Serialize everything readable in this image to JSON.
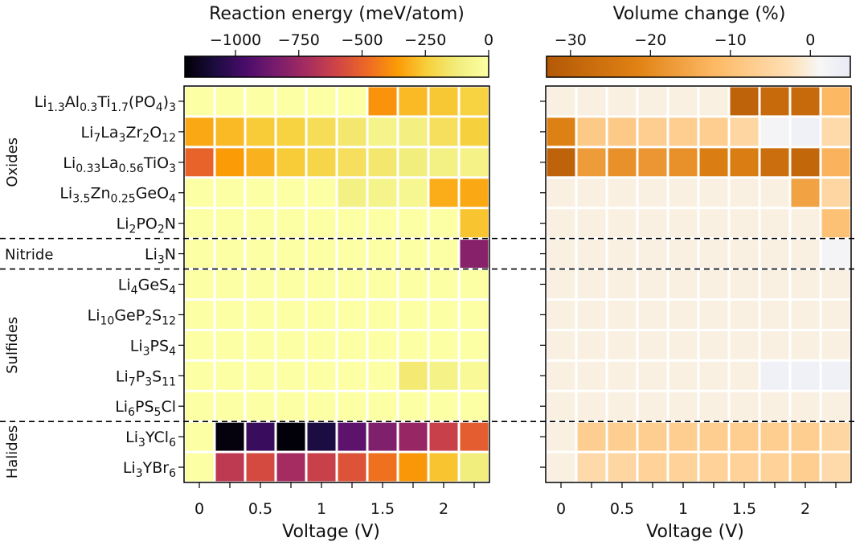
{
  "chart_data": [
    {
      "type": "heatmap",
      "panel": "left",
      "title": "Reaction energy (meV/atom)",
      "xlabel": "Voltage (V)",
      "x_values": [
        0,
        0.25,
        0.5,
        0.75,
        1,
        1.25,
        1.5,
        1.75,
        2,
        2.25
      ],
      "x_tick_labels": [
        "0",
        "0.5",
        "1",
        "1.5",
        "2"
      ],
      "x_tick_values": [
        0,
        0.5,
        1,
        1.5,
        2
      ],
      "colorbar": {
        "colormap": "inferno",
        "range": [
          -1200,
          0
        ],
        "ticks": [
          -1000,
          -750,
          -500,
          -250,
          0
        ],
        "tick_labels": [
          "−1000",
          "−750",
          "−500",
          "−250",
          "0"
        ]
      },
      "matrix": [
        [
          0,
          0,
          0,
          0,
          0,
          0,
          -380,
          -290,
          -260,
          -230
        ],
        [
          -330,
          -290,
          -250,
          -230,
          -190,
          -150,
          -80,
          -110,
          -180,
          -240
        ],
        [
          -500,
          -360,
          -310,
          -250,
          -220,
          -180,
          -150,
          -120,
          -100,
          -90
        ],
        [
          0,
          0,
          0,
          0,
          0,
          -100,
          -80,
          -60,
          -320,
          -330
        ],
        [
          0,
          0,
          0,
          0,
          0,
          0,
          0,
          0,
          0,
          -270
        ],
        [
          0,
          0,
          0,
          0,
          0,
          0,
          0,
          0,
          0,
          -800
        ],
        [
          0,
          0,
          0,
          0,
          0,
          0,
          0,
          0,
          0,
          0
        ],
        [
          0,
          0,
          0,
          0,
          0,
          0,
          0,
          0,
          0,
          0
        ],
        [
          0,
          0,
          0,
          0,
          0,
          0,
          0,
          0,
          0,
          0
        ],
        [
          0,
          0,
          0,
          0,
          0,
          0,
          0,
          -140,
          -90,
          -40
        ],
        [
          0,
          0,
          0,
          0,
          0,
          0,
          0,
          0,
          0,
          0
        ],
        [
          0,
          -1180,
          -1000,
          -1190,
          -1080,
          -910,
          -820,
          -760,
          -620,
          -520
        ],
        [
          0,
          -650,
          -580,
          -720,
          -620,
          -550,
          -460,
          -370,
          -270,
          -120
        ]
      ]
    },
    {
      "type": "heatmap",
      "panel": "right",
      "title": "Volume change (%)",
      "xlabel": "Voltage (V)",
      "x_values": [
        0,
        0.25,
        0.5,
        0.75,
        1,
        1.25,
        1.5,
        1.75,
        2,
        2.25
      ],
      "x_tick_labels": [
        "0",
        "0.5",
        "1",
        "1.5",
        "2"
      ],
      "x_tick_values": [
        0,
        0.5,
        1,
        1.5,
        2
      ],
      "colorbar": {
        "colormap": "orange-to-white",
        "range": [
          -33,
          5
        ],
        "ticks": [
          -30,
          -20,
          -10,
          0
        ],
        "tick_labels": [
          "−30",
          "−20",
          "−10",
          "0"
        ]
      },
      "matrix": [
        [
          0,
          0,
          0,
          0,
          0,
          0,
          -30,
          -28,
          -28,
          -12
        ],
        [
          -22,
          -8,
          -8,
          -7,
          -7,
          -7,
          -5,
          2,
          3,
          -4
        ],
        [
          -30,
          -17,
          -19,
          -18,
          -19,
          -23,
          -23,
          -27,
          -29,
          -13
        ],
        [
          0,
          0,
          0,
          0,
          0,
          0,
          0,
          0,
          -16,
          -5
        ],
        [
          0,
          0,
          0,
          0,
          0,
          0,
          0,
          0,
          0,
          -10
        ],
        [
          0,
          0,
          0,
          0,
          0,
          0,
          0,
          0,
          0,
          2
        ],
        [
          0,
          0,
          0,
          0,
          0,
          0,
          0,
          0,
          0,
          0
        ],
        [
          0,
          0,
          0,
          0,
          0,
          0,
          0,
          0,
          0,
          0
        ],
        [
          0,
          0,
          0,
          0,
          0,
          0,
          0,
          0,
          0,
          0
        ],
        [
          0,
          0,
          0,
          0,
          0,
          0,
          0,
          3,
          3,
          3
        ],
        [
          0,
          0,
          0,
          0,
          0,
          0,
          0,
          0,
          0,
          0
        ],
        [
          0,
          -7,
          -7,
          -7,
          -7,
          -7,
          -7,
          -7,
          -7,
          -5
        ],
        [
          0,
          -4,
          -5,
          -6,
          -6,
          -6,
          -6,
          -6,
          -7,
          -4
        ]
      ]
    }
  ],
  "rows": [
    {
      "parts": [
        [
          "Li",
          ""
        ],
        [
          "1.3",
          "sub"
        ],
        [
          "Al",
          ""
        ],
        [
          "0.3",
          "sub"
        ],
        [
          "Ti",
          ""
        ],
        [
          "1.7",
          "sub"
        ],
        [
          "(PO",
          ""
        ],
        [
          "4",
          "sub"
        ],
        [
          ")",
          ""
        ],
        [
          "3",
          "sub"
        ]
      ]
    },
    {
      "parts": [
        [
          "Li",
          ""
        ],
        [
          "7",
          "sub"
        ],
        [
          "La",
          ""
        ],
        [
          "3",
          "sub"
        ],
        [
          "Zr",
          ""
        ],
        [
          "2",
          "sub"
        ],
        [
          "O",
          ""
        ],
        [
          "12",
          "sub"
        ]
      ]
    },
    {
      "parts": [
        [
          "Li",
          ""
        ],
        [
          "0.33",
          "sub"
        ],
        [
          "La",
          ""
        ],
        [
          "0.56",
          "sub"
        ],
        [
          "TiO",
          ""
        ],
        [
          "3",
          "sub"
        ]
      ]
    },
    {
      "parts": [
        [
          "Li",
          ""
        ],
        [
          "3.5",
          "sub"
        ],
        [
          "Zn",
          ""
        ],
        [
          "0.25",
          "sub"
        ],
        [
          "GeO",
          ""
        ],
        [
          "4",
          "sub"
        ]
      ]
    },
    {
      "parts": [
        [
          "Li",
          ""
        ],
        [
          "2",
          "sub"
        ],
        [
          "PO",
          ""
        ],
        [
          "2",
          "sub"
        ],
        [
          "N",
          ""
        ]
      ]
    },
    {
      "parts": [
        [
          "Li",
          ""
        ],
        [
          "3",
          "sub"
        ],
        [
          "N",
          ""
        ]
      ]
    },
    {
      "parts": [
        [
          "Li",
          ""
        ],
        [
          "4",
          "sub"
        ],
        [
          "GeS",
          ""
        ],
        [
          "4",
          "sub"
        ]
      ]
    },
    {
      "parts": [
        [
          "Li",
          ""
        ],
        [
          "10",
          "sub"
        ],
        [
          "GeP",
          ""
        ],
        [
          "2",
          "sub"
        ],
        [
          "S",
          ""
        ],
        [
          "12",
          "sub"
        ]
      ]
    },
    {
      "parts": [
        [
          "Li",
          ""
        ],
        [
          "3",
          "sub"
        ],
        [
          "PS",
          ""
        ],
        [
          "4",
          "sub"
        ]
      ]
    },
    {
      "parts": [
        [
          "Li",
          ""
        ],
        [
          "7",
          "sub"
        ],
        [
          "P",
          ""
        ],
        [
          "3",
          "sub"
        ],
        [
          "S",
          ""
        ],
        [
          "11",
          "sub"
        ]
      ]
    },
    {
      "parts": [
        [
          "Li",
          ""
        ],
        [
          "6",
          "sub"
        ],
        [
          "PS",
          ""
        ],
        [
          "5",
          "sub"
        ],
        [
          "Cl",
          ""
        ]
      ]
    },
    {
      "parts": [
        [
          "Li",
          ""
        ],
        [
          "3",
          "sub"
        ],
        [
          "YCl",
          ""
        ],
        [
          "6",
          "sub"
        ]
      ]
    },
    {
      "parts": [
        [
          "Li",
          ""
        ],
        [
          "3",
          "sub"
        ],
        [
          "YBr",
          ""
        ],
        [
          "6",
          "sub"
        ]
      ]
    }
  ],
  "groups": [
    {
      "label": "Oxides",
      "row_start": 0,
      "row_end": 4
    },
    {
      "label": "Nitride",
      "row_start": 5,
      "row_end": 5
    },
    {
      "label": "Sulfides",
      "row_start": 6,
      "row_end": 10
    },
    {
      "label": "Halides",
      "row_start": 11,
      "row_end": 12
    }
  ],
  "group_separators_after_rows": [
    4,
    5,
    10
  ]
}
